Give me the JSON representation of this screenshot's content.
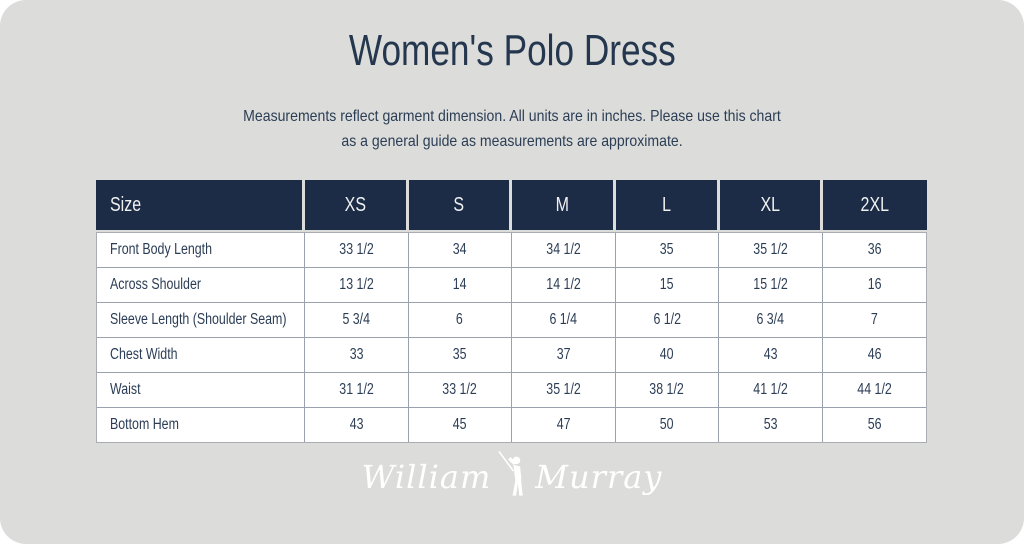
{
  "page": {
    "title": "Women's Polo Dress",
    "subtitle_line1": "Measurements reflect garment dimension. All units are in inches. Please use this chart",
    "subtitle_line2": "as a general guide as measurements are approximate."
  },
  "chart_data": {
    "type": "table",
    "title": "Women's Polo Dress",
    "units": "inches",
    "columns": [
      "Size",
      "XS",
      "S",
      "M",
      "L",
      "XL",
      "2XL"
    ],
    "rows": [
      {
        "label": "Front Body Length",
        "values": [
          "33 1/2",
          "34",
          "34 1/2",
          "35",
          "35 1/2",
          "36"
        ]
      },
      {
        "label": "Across Shoulder",
        "values": [
          "13 1/2",
          "14",
          "14 1/2",
          "15",
          "15 1/2",
          "16"
        ]
      },
      {
        "label": "Sleeve Length (Shoulder Seam)",
        "values": [
          "5 3/4",
          "6",
          "6 1/4",
          "6 1/2",
          "6 3/4",
          "7"
        ]
      },
      {
        "label": "Chest Width",
        "values": [
          "33",
          "35",
          "37",
          "40",
          "43",
          "46"
        ]
      },
      {
        "label": "Waist",
        "values": [
          "31 1/2",
          "33 1/2",
          "35 1/2",
          "38 1/2",
          "41 1/2",
          "44 1/2"
        ]
      },
      {
        "label": "Bottom Hem",
        "values": [
          "43",
          "45",
          "47",
          "50",
          "53",
          "56"
        ]
      }
    ]
  },
  "logo": {
    "word1": "William",
    "word2": "Murray",
    "icon": "golfer-icon"
  },
  "colors": {
    "card_background": "#dcddda",
    "header_navy": "#1c2c47",
    "text_navy": "#2b3d55",
    "header_text": "#f0f1f1",
    "cell_border": "#98a1ac",
    "logo_white": "#ffffff"
  }
}
